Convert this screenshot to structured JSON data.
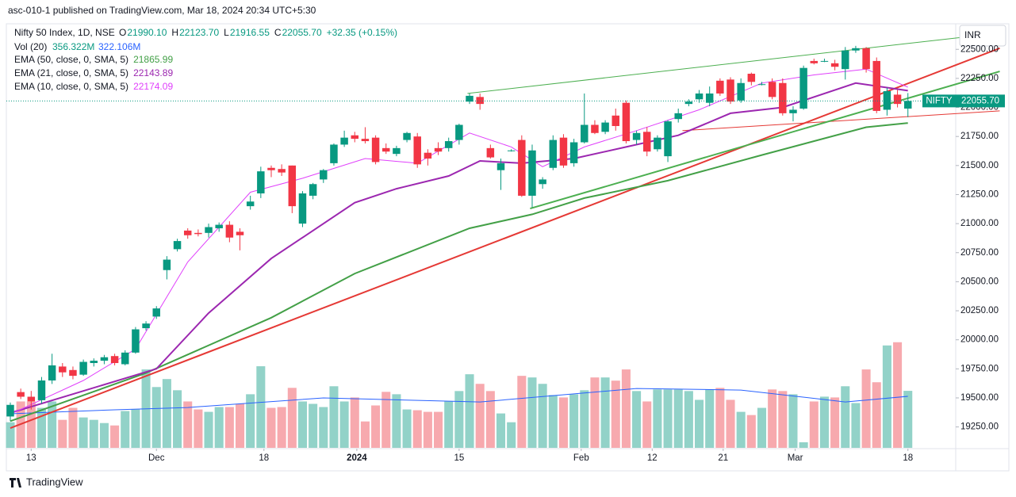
{
  "header": "asc-010-1 published on TradingView.com, Mar 18, 2024 20:34 UTC+5:30",
  "footer": "TradingView",
  "chart_data": {
    "type": "candlestick",
    "currency": "INR",
    "symbol_badge": "NIFTY",
    "price_badge": "22055.70",
    "last_price": 22055.7,
    "legend": {
      "title": "Nifty 50 Index, 1D, NSE",
      "ohlc": [
        {
          "key": "O",
          "text": "21990.10"
        },
        {
          "key": "H",
          "text": "22123.70"
        },
        {
          "key": "L",
          "text": "21916.55"
        },
        {
          "key": "C",
          "text": "22055.70"
        }
      ],
      "change": "+32.35 (+0.15%)",
      "volume": {
        "name": "Vol (20)",
        "value": "356.322M",
        "ma": "322.106M"
      }
    },
    "up_color": "#089981",
    "down_color": "#f23645",
    "volume_up_color": "#92d2c8",
    "volume_down_color": "#f7a9ae",
    "xlim": [
      -0.38,
      90.58
    ],
    "ylim": [
      19070,
      22720
    ],
    "volume_ylim": [
      0,
      2650
    ],
    "yticks": [
      {
        "value": 19250,
        "label": "19250.00"
      },
      {
        "value": 19500,
        "label": "19500.00"
      },
      {
        "value": 19750,
        "label": "19750.00"
      },
      {
        "value": 20000,
        "label": "20000.00"
      },
      {
        "value": 20250,
        "label": "20250.00"
      },
      {
        "value": 20500,
        "label": "20500.00"
      },
      {
        "value": 20750,
        "label": "20750.00"
      },
      {
        "value": 21000,
        "label": "21000.00"
      },
      {
        "value": 21250,
        "label": "21250.00"
      },
      {
        "value": 21500,
        "label": "21500.00"
      },
      {
        "value": 21750,
        "label": "21750.00"
      },
      {
        "value": 22000,
        "label": "22000.00"
      },
      {
        "value": 22250,
        "label": "22250.00"
      },
      {
        "value": 22500,
        "label": "22500.00"
      }
    ],
    "xticks": [
      {
        "value": 2,
        "label": "13"
      },
      {
        "value": 14,
        "label": "Dec"
      },
      {
        "value": 24.3,
        "label": "18"
      },
      {
        "value": 33.2,
        "label": "2024"
      },
      {
        "value": 43,
        "label": "15"
      },
      {
        "value": 54.7,
        "label": "Feb"
      },
      {
        "value": 61.5,
        "label": "12"
      },
      {
        "value": 68.3,
        "label": "21"
      },
      {
        "value": 75.2,
        "label": "Mar"
      },
      {
        "value": 86,
        "label": "18"
      }
    ],
    "candles": [
      [
        19340,
        19460,
        19300,
        19440
      ],
      [
        19550,
        19580,
        19490,
        19510
      ],
      [
        19510,
        19560,
        19400,
        19470
      ],
      [
        19480,
        19680,
        19450,
        19650
      ],
      [
        19650,
        19880,
        19620,
        19780
      ],
      [
        19770,
        19800,
        19680,
        19720
      ],
      [
        19740,
        19770,
        19660,
        19690
      ],
      [
        19700,
        19830,
        19690,
        19810
      ],
      [
        19800,
        19840,
        19770,
        19820
      ],
      [
        19820,
        19870,
        19790,
        19850
      ],
      [
        19860,
        19880,
        19780,
        19800
      ],
      [
        19790,
        19910,
        19780,
        19890
      ],
      [
        19890,
        20110,
        19880,
        20090
      ],
      [
        20100,
        20160,
        20080,
        20140
      ],
      [
        20200,
        20290,
        20180,
        20270
      ],
      [
        20600,
        20720,
        20520,
        20690
      ],
      [
        20780,
        20870,
        20760,
        20850
      ],
      [
        20940,
        20960,
        20870,
        20900
      ],
      [
        20920,
        20950,
        20890,
        20910
      ],
      [
        20920,
        21000,
        20880,
        20970
      ],
      [
        20960,
        21010,
        20930,
        20990
      ],
      [
        20990,
        21020,
        20840,
        20880
      ],
      [
        20930,
        20960,
        20770,
        20900
      ],
      [
        21150,
        21240,
        21120,
        21190
      ],
      [
        21260,
        21490,
        21220,
        21450
      ],
      [
        21480,
        21500,
        21400,
        21460
      ],
      [
        21470,
        21510,
        21410,
        21440
      ],
      [
        21500,
        21500,
        21090,
        21150
      ],
      [
        21000,
        21280,
        20970,
        21260
      ],
      [
        21240,
        21350,
        21210,
        21340
      ],
      [
        21380,
        21470,
        21350,
        21460
      ],
      [
        21520,
        21690,
        21500,
        21680
      ],
      [
        21680,
        21800,
        21660,
        21740
      ],
      [
        21760,
        21790,
        21700,
        21730
      ],
      [
        21730,
        21830,
        21690,
        21710
      ],
      [
        21740,
        21760,
        21510,
        21530
      ],
      [
        21650,
        21690,
        21600,
        21620
      ],
      [
        21600,
        21670,
        21580,
        21650
      ],
      [
        21720,
        21790,
        21700,
        21780
      ],
      [
        21750,
        21780,
        21480,
        21510
      ],
      [
        21610,
        21640,
        21500,
        21560
      ],
      [
        21650,
        21700,
        21590,
        21620
      ],
      [
        21650,
        21740,
        21620,
        21710
      ],
      [
        21720,
        21860,
        21680,
        21850
      ],
      [
        22050,
        22120,
        22030,
        22100
      ],
      [
        22090,
        22120,
        21980,
        22030
      ],
      [
        21650,
        21680,
        21560,
        21570
      ],
      [
        21460,
        21560,
        21290,
        21520
      ],
      [
        21630,
        21640,
        21620,
        21630
      ],
      [
        21720,
        21760,
        21230,
        21240
      ],
      [
        21240,
        21680,
        21140,
        21630
      ],
      [
        21340,
        21400,
        21300,
        21380
      ],
      [
        21480,
        21760,
        21460,
        21720
      ],
      [
        21740,
        21770,
        21480,
        21500
      ],
      [
        21520,
        21730,
        21490,
        21700
      ],
      [
        21700,
        22120,
        21690,
        21850
      ],
      [
        21850,
        21890,
        21770,
        21780
      ],
      [
        21790,
        21890,
        21770,
        21870
      ],
      [
        21930,
        21990,
        21800,
        21840
      ],
      [
        22040,
        22060,
        21690,
        21710
      ],
      [
        21720,
        21800,
        21680,
        21780
      ],
      [
        21790,
        21830,
        21580,
        21620
      ],
      [
        21640,
        21760,
        21620,
        21740
      ],
      [
        21580,
        21890,
        21530,
        21880
      ],
      [
        21900,
        21990,
        21870,
        21950
      ],
      [
        22030,
        22070,
        22010,
        22050
      ],
      [
        22070,
        22150,
        22040,
        22120
      ],
      [
        22040,
        22180,
        22010,
        22120
      ],
      [
        22230,
        22250,
        22100,
        22120
      ],
      [
        22240,
        22260,
        22030,
        22050
      ],
      [
        22060,
        22250,
        22040,
        22210
      ],
      [
        22290,
        22300,
        22190,
        22220
      ],
      [
        22200,
        22220,
        22190,
        22200
      ],
      [
        22220,
        22250,
        22070,
        22090
      ],
      [
        22210,
        22250,
        21930,
        21950
      ],
      [
        21950,
        22010,
        21880,
        21980
      ],
      [
        21990,
        22360,
        21980,
        22340
      ],
      [
        22400,
        22420,
        22370,
        22380
      ],
      [
        22400,
        22420,
        22390,
        22400
      ],
      [
        22380,
        22410,
        22320,
        22350
      ],
      [
        22330,
        22520,
        22240,
        22490
      ],
      [
        22490,
        22530,
        22470,
        22510
      ],
      [
        22510,
        22520,
        22300,
        22330
      ],
      [
        22400,
        22430,
        21950,
        21970
      ],
      [
        21980,
        22170,
        21930,
        22140
      ],
      [
        22110,
        22150,
        22000,
        22030
      ],
      [
        21990.1,
        22123.7,
        21916.55,
        22055.7
      ]
    ],
    "volume": [
      160,
      290,
      290,
      250,
      290,
      175,
      250,
      190,
      175,
      155,
      140,
      230,
      240,
      490,
      380,
      430,
      360,
      290,
      240,
      225,
      255,
      255,
      275,
      335,
      510,
      250,
      255,
      375,
      290,
      275,
      255,
      385,
      290,
      315,
      165,
      265,
      350,
      335,
      240,
      235,
      225,
      225,
      290,
      355,
      460,
      400,
      355,
      215,
      160,
      450,
      440,
      400,
      330,
      315,
      335,
      360,
      440,
      440,
      420,
      490,
      355,
      290,
      365,
      365,
      365,
      355,
      300,
      365,
      375,
      300,
      225,
      205,
      250,
      365,
      355,
      335,
      35,
      290,
      320,
      315,
      385,
      280,
      490,
      410,
      640,
      660,
      356.322
    ],
    "volume_ma": {
      "color": "#2962ff",
      "x": [
        0,
        10,
        17,
        30,
        45,
        60,
        70,
        80,
        86
      ],
      "values": [
        213,
        238,
        252,
        312,
        287,
        371,
        361,
        287,
        322.106
      ]
    },
    "series": [
      {
        "name": "EMA (50, close, 0, SMA, 5)",
        "value_label": "21865.99",
        "color": "#43a047",
        "width": 2,
        "x": [
          0,
          13,
          25,
          33,
          44,
          50,
          55,
          63,
          72,
          82,
          86
        ],
        "values": [
          19300,
          19714,
          20190,
          20570,
          20960,
          21080,
          21220,
          21370,
          21590,
          21830,
          21865.99
        ]
      },
      {
        "name": "EMA (21, close, 0, SMA, 5)",
        "value_label": "22143.89",
        "color": "#9c27b0",
        "width": 2,
        "x": [
          0,
          7,
          14,
          19,
          25,
          33,
          37,
          42,
          45,
          49,
          54,
          59,
          64,
          69,
          74,
          81,
          86
        ],
        "values": [
          19370,
          19560,
          19750,
          20230,
          20700,
          21180,
          21300,
          21410,
          21540,
          21520,
          21560,
          21660,
          21760,
          21950,
          22000,
          22210,
          22143.89
        ]
      },
      {
        "name": "EMA (10, close, 0, SMA, 5)",
        "value_label": "22174.09",
        "color": "#e040fb",
        "width": 1,
        "x": [
          0,
          7,
          12,
          17,
          23,
          28,
          34,
          39,
          44,
          48,
          51,
          55,
          60,
          66,
          72,
          77,
          82,
          86
        ],
        "values": [
          19360,
          19650,
          19920,
          20670,
          21270,
          21390,
          21560,
          21520,
          21780,
          21660,
          21490,
          21660,
          21800,
          21980,
          22210,
          22280,
          22330,
          22174.09
        ]
      }
    ],
    "trendlines": [
      {
        "color": "#4caf50",
        "x": [
          43.8,
          94.8
        ],
        "values": [
          22120,
          22640
        ]
      },
      {
        "color": "#e53935",
        "x": [
          0,
          94.8
        ],
        "values": [
          19240,
          22510
        ]
      },
      {
        "color": "#e53935",
        "x": [
          64.4,
          94.8
        ],
        "values": [
          21800,
          21970
        ]
      },
      {
        "color": "#4caf50",
        "x": [
          49.8,
          94.8
        ],
        "values": [
          21130,
          22310
        ]
      }
    ]
  }
}
